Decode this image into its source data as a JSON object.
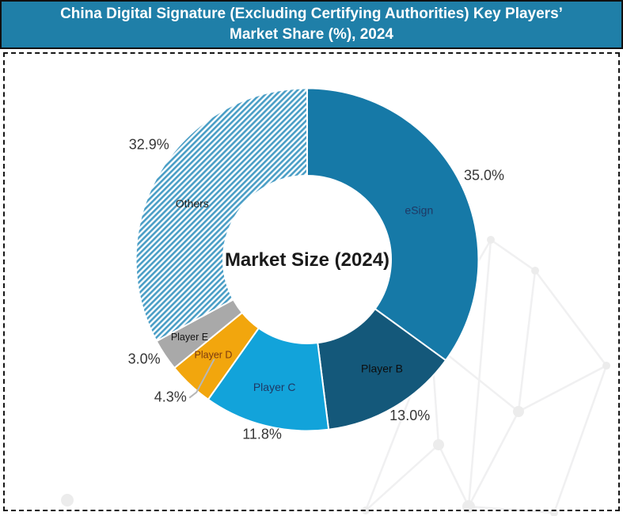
{
  "window": {
    "title": "China Digital Signature (Excluding Certifying Authorities) Key Players’ Market Share (%), 2024"
  },
  "chart_data": {
    "type": "pie",
    "variant": "donut",
    "title": "China Digital Signature (Excluding Certifying Authorities) Key Players’ Market Share (%), 2024",
    "center_label": "Market Size (2024)",
    "start_angle_deg": 0,
    "direction": "clockwise",
    "units": "%",
    "total": 100,
    "colors": {
      "title_bar_bg": "#1F7FA8",
      "title_text": "#FFFFFF",
      "pct_text": "#363636",
      "center_text": "#1A1A1A",
      "slice_gap": "#FFFFFF",
      "leader_line": "#B7B7B7"
    },
    "segments": [
      {
        "label": "eSign",
        "value": 35.0,
        "pct_label": "35.0%",
        "color": "#1679A7",
        "label_color": "#1F3864"
      },
      {
        "label": "Player B",
        "value": 13.0,
        "pct_label": "13.0%",
        "color": "#14587A",
        "label_color": "#0D0D0D"
      },
      {
        "label": "Player C",
        "value": 11.8,
        "pct_label": "11.8%",
        "color": "#12A3DA",
        "label_color": "#1F3864"
      },
      {
        "label": "Player D",
        "value": 4.3,
        "pct_label": "4.3%",
        "color": "#F2A60D",
        "label_color": "#7B3A10",
        "leader_line": true
      },
      {
        "label": "Player E",
        "value": 3.0,
        "pct_label": "3.0%",
        "color": "#A9A9A9",
        "label_color": "#161616"
      },
      {
        "label": "Others",
        "value": 32.9,
        "pct_label": "32.9%",
        "color": "hatch",
        "hatch": true,
        "hatch_stripe_color": "#4A9EC6",
        "hatch_bg_color": "#FFFFFF",
        "label_color": "#1F1F1F"
      }
    ]
  }
}
